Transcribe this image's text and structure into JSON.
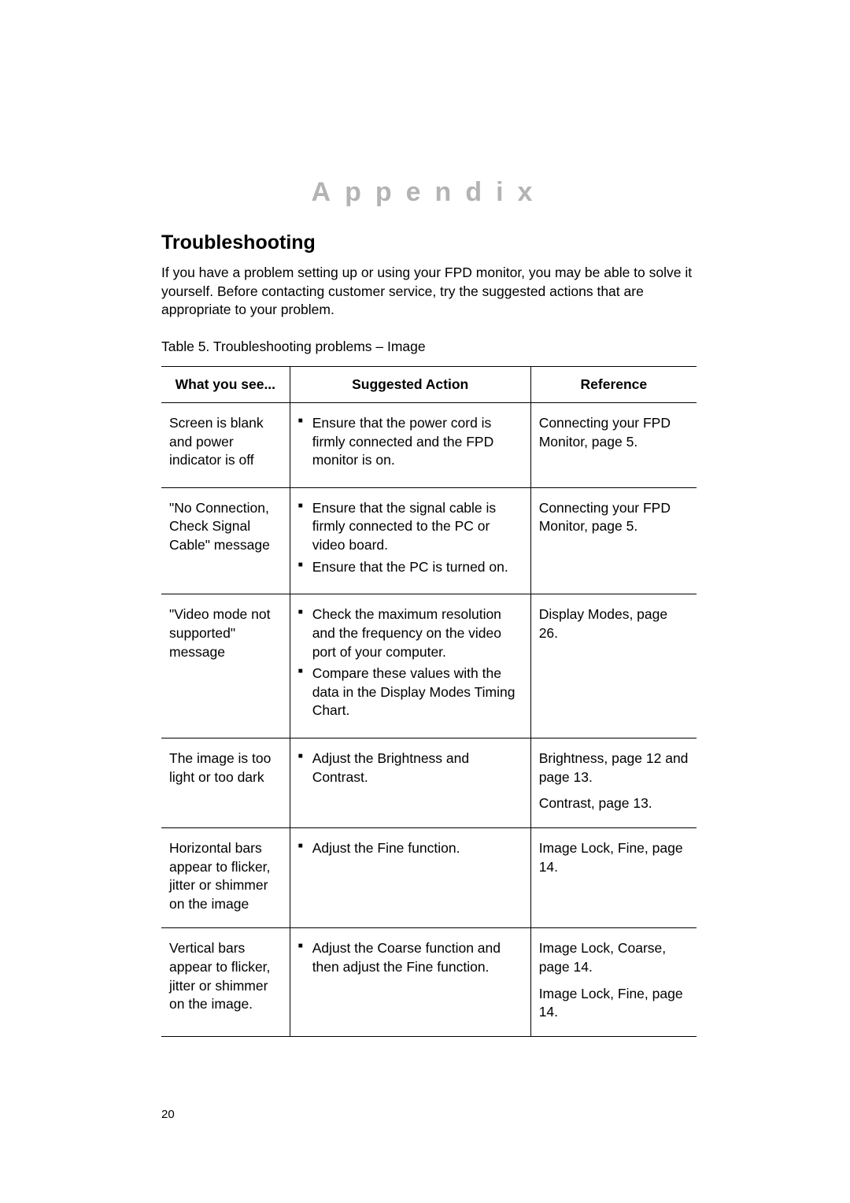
{
  "appendix_title": "Appendix",
  "section_title": "Troubleshooting",
  "intro": "If you have a problem setting up or using your FPD monitor, you may be able to solve it yourself. Before contacting customer service, try the suggested actions that are appropriate to your problem.",
  "table_caption": "Table 5.  Troubleshooting problems – Image",
  "columns": {
    "col1": "What you see...",
    "col2": "Suggested Action",
    "col3": "Reference"
  },
  "rows": [
    {
      "what": "Screen is blank and power indicator is off",
      "actions": [
        "Ensure that the power cord is firmly connected and the FPD monitor is on."
      ],
      "refs": [
        "Connecting your FPD Monitor, page 5."
      ]
    },
    {
      "what": "\"No Connection, Check Signal Cable\" message",
      "actions": [
        "Ensure that the signal cable is firmly connected to the PC or video board.",
        "Ensure that the PC is turned on."
      ],
      "refs": [
        "Connecting your FPD Monitor, page 5."
      ]
    },
    {
      "what": "\"Video mode not supported\" message",
      "actions": [
        "Check the maximum resolution and the frequency on the video port of your computer.",
        "Compare these values with the data in the Display Modes Timing Chart."
      ],
      "refs": [
        "Display Modes, page 26."
      ]
    },
    {
      "what": "The image is too light or too dark",
      "actions": [
        "Adjust the Brightness and Contrast."
      ],
      "refs": [
        "Brightness, page 12 and page 13.",
        "Contrast, page 13."
      ]
    },
    {
      "what": "Horizontal bars appear to flicker, jitter or shimmer on the image",
      "actions": [
        "Adjust the Fine function."
      ],
      "refs": [
        "Image Lock, Fine, page 14."
      ]
    },
    {
      "what": "Vertical bars appear to flicker, jitter or shimmer on the image.",
      "actions": [
        "Adjust the Coarse function and then adjust the Fine function."
      ],
      "refs": [
        "Image Lock, Coarse, page 14.",
        "Image Lock, Fine, page 14."
      ]
    }
  ],
  "page_number": "20",
  "colors": {
    "appendix_grey": "#b3b3b3",
    "text": "#000000",
    "border": "#000000",
    "background": "#ffffff"
  },
  "typography": {
    "appendix_fontsize": 34,
    "section_fontsize": 25,
    "body_fontsize": 17.5,
    "pagenum_fontsize": 15
  }
}
